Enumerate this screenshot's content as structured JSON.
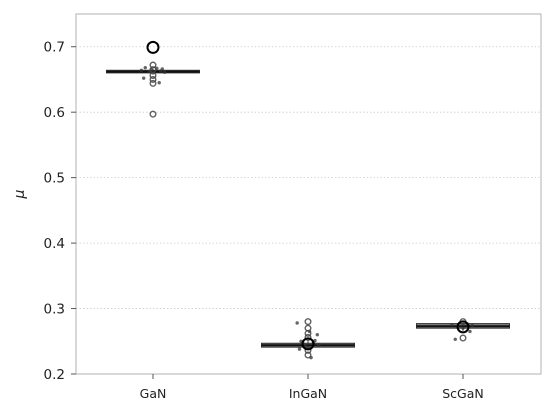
{
  "chart_data": {
    "type": "box",
    "title": "",
    "xlabel": "",
    "ylabel": "μ",
    "ylim": [
      0.2,
      0.75
    ],
    "yticks": [
      0.2,
      0.3,
      0.4,
      0.5,
      0.6,
      0.7
    ],
    "ytick_labels": [
      "0.2",
      "0.3",
      "0.4",
      "0.5",
      "0.6",
      "0.7"
    ],
    "grid": "horizontal dotted",
    "categories": [
      "GaN",
      "InGaN",
      "ScGaN"
    ],
    "boxes": [
      {
        "category": "GaN",
        "q1": 0.66,
        "median": 0.662,
        "q3": 0.664,
        "whisker_low": 0.659,
        "whisker_high": 0.666
      },
      {
        "category": "InGaN",
        "q1": 0.241,
        "median": 0.244,
        "q3": 0.247,
        "whisker_low": 0.238,
        "whisker_high": 0.252
      },
      {
        "category": "ScGaN",
        "q1": 0.27,
        "median": 0.273,
        "q3": 0.277,
        "whisker_low": 0.266,
        "whisker_high": 0.28
      }
    ],
    "reference_points": [
      {
        "category": "GaN",
        "value": 0.699
      },
      {
        "category": "InGaN",
        "value": 0.246
      },
      {
        "category": "ScGaN",
        "value": 0.272
      }
    ],
    "outliers": [
      {
        "category": "GaN",
        "values": [
          0.672,
          0.665,
          0.656,
          0.65,
          0.644,
          0.597
        ]
      },
      {
        "category": "InGaN",
        "values": [
          0.28,
          0.27,
          0.262,
          0.256,
          0.236,
          0.229
        ]
      },
      {
        "category": "ScGaN",
        "values": [
          0.28,
          0.255
        ]
      }
    ],
    "jitter_points": [
      {
        "category": "GaN",
        "offsets": [
          -0.15,
          -0.1,
          -0.05,
          0.0,
          0.05,
          0.1,
          0.15,
          -0.12,
          0.08,
          -0.02,
          0.12
        ],
        "values": [
          0.664,
          0.668,
          0.662,
          0.66,
          0.667,
          0.663,
          0.661,
          0.652,
          0.645,
          0.665,
          0.666
        ]
      },
      {
        "category": "InGaN",
        "offsets": [
          -0.14,
          -0.09,
          -0.04,
          0.02,
          0.07,
          0.12,
          -0.11,
          0.04,
          0.09,
          -0.06,
          0.14,
          0.0
        ],
        "values": [
          0.278,
          0.25,
          0.243,
          0.265,
          0.247,
          0.26,
          0.238,
          0.225,
          0.251,
          0.246,
          0.244,
          0.24
        ]
      },
      {
        "category": "ScGaN",
        "offsets": [
          -0.14,
          -0.07,
          0.0,
          0.06,
          0.12,
          -0.1,
          0.09
        ],
        "values": [
          0.275,
          0.273,
          0.27,
          0.276,
          0.274,
          0.253,
          0.265
        ]
      }
    ]
  }
}
